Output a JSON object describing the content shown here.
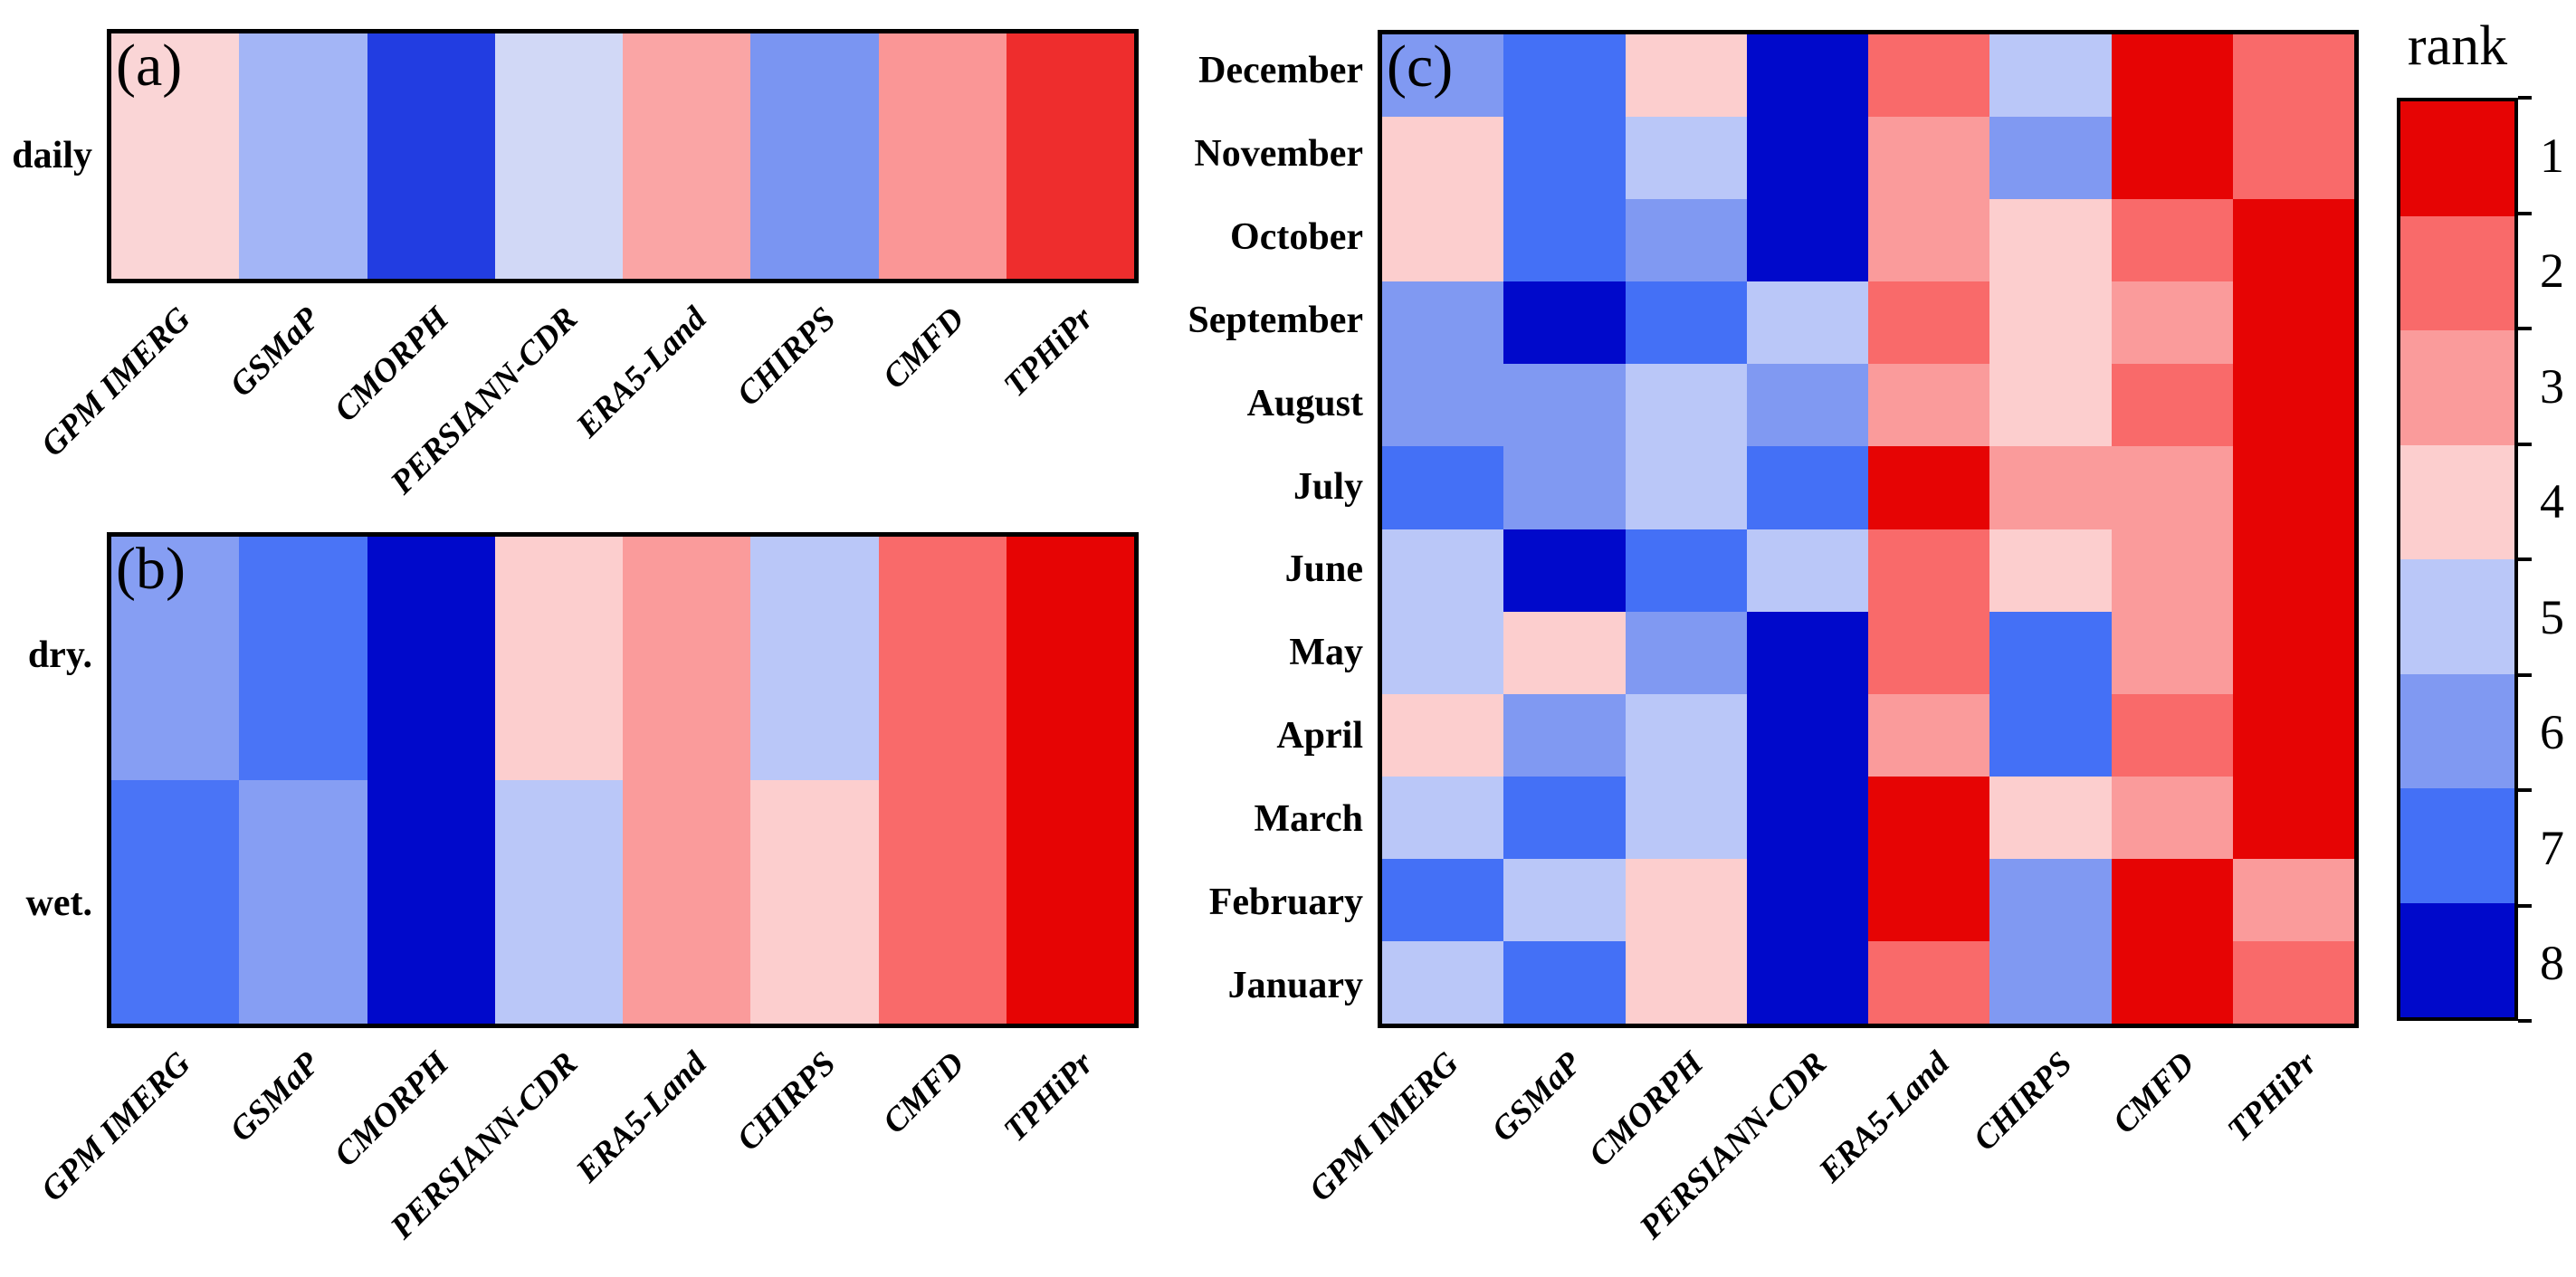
{
  "figure": {
    "background": "#ffffff",
    "products": [
      "GPM IMERG",
      "GSMaP",
      "CMORPH",
      "PERSIANN-CDR",
      "ERA5-Land",
      "CHIRPS",
      "CMFD",
      "TPHiPr"
    ]
  },
  "chart_data": [
    {
      "type": "heatmap",
      "panel_tag": "(a)",
      "rows": [
        "daily"
      ],
      "columns": [
        "GPM IMERG",
        "GSMaP",
        "CMORPH",
        "PERSIANN-CDR",
        "ERA5-Land",
        "CHIRPS",
        "CMFD",
        "TPHiPr"
      ],
      "values": [
        [
          4.1,
          5.4,
          7.5,
          4.8,
          3.2,
          6.1,
          2.9,
          1.4
        ]
      ]
    },
    {
      "type": "heatmap",
      "panel_tag": "(b)",
      "rows": [
        "dry.",
        "wet."
      ],
      "columns": [
        "GPM IMERG",
        "GSMaP",
        "CMORPH",
        "PERSIANN-CDR",
        "ERA5-Land",
        "CHIRPS",
        "CMFD",
        "TPHiPr"
      ],
      "values": [
        [
          5.9,
          6.9,
          8,
          4,
          3,
          5,
          2,
          1
        ],
        [
          6.9,
          5.9,
          8,
          5,
          3,
          4,
          2,
          1
        ]
      ]
    },
    {
      "type": "heatmap",
      "panel_tag": "(c)",
      "rows": [
        "December",
        "November",
        "October",
        "September",
        "August",
        "July",
        "June",
        "May",
        "April",
        "March",
        "February",
        "January"
      ],
      "columns": [
        "GPM IMERG",
        "GSMaP",
        "CMORPH",
        "PERSIANN-CDR",
        "ERA5-Land",
        "CHIRPS",
        "CMFD",
        "TPHiPr"
      ],
      "values": [
        [
          6,
          7,
          4,
          8,
          2,
          5,
          1,
          2
        ],
        [
          4,
          7,
          5,
          8,
          3,
          6,
          1,
          2
        ],
        [
          4,
          7,
          6,
          8,
          3,
          4,
          2,
          1
        ],
        [
          6,
          8,
          7,
          5,
          2,
          4,
          3,
          1
        ],
        [
          6,
          6,
          5,
          6,
          3,
          4,
          2,
          1
        ],
        [
          7,
          6,
          5,
          7,
          1,
          3,
          3,
          1
        ],
        [
          5,
          8,
          7,
          5,
          2,
          4,
          3,
          1
        ],
        [
          5,
          4,
          6,
          8,
          2,
          7,
          3,
          1
        ],
        [
          4,
          6,
          5,
          8,
          3,
          7,
          2,
          1
        ],
        [
          5,
          7,
          5,
          8,
          1,
          4,
          3,
          1
        ],
        [
          7,
          5,
          4,
          8,
          1,
          6,
          1,
          3
        ],
        [
          5,
          7,
          4,
          8,
          2,
          6,
          1,
          2
        ]
      ]
    }
  ],
  "colorbar": {
    "title": "rank",
    "orientation": "vertical",
    "top_value": 1,
    "bottom_value": 8,
    "tick_labels": [
      "1",
      "2",
      "3",
      "4",
      "5",
      "6",
      "7",
      "8"
    ],
    "bin_colors": [
      "#e60404",
      "#f96a6a",
      "#fa9b9b",
      "#fccece",
      "#bac7f8",
      "#8099f2",
      "#4470f6",
      "#0009cb"
    ]
  },
  "palette_anchors": [
    {
      "v": 1,
      "c": "#e60404"
    },
    {
      "v": 2,
      "c": "#f96a6a"
    },
    {
      "v": 3,
      "c": "#fa9b9b"
    },
    {
      "v": 4,
      "c": "#fccece"
    },
    {
      "v": 4.5,
      "c": "#f4f1f4"
    },
    {
      "v": 5,
      "c": "#bac7f8"
    },
    {
      "v": 6,
      "c": "#8099f2"
    },
    {
      "v": 7,
      "c": "#4470f6"
    },
    {
      "v": 8,
      "c": "#0009cb"
    }
  ]
}
